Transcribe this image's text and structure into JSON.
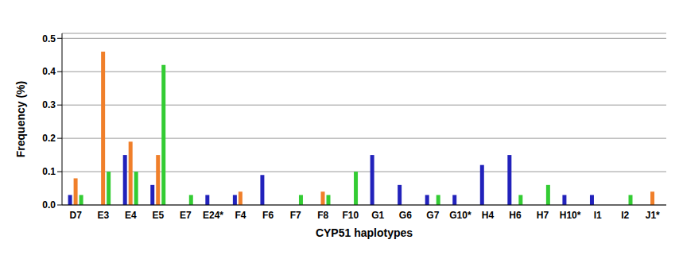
{
  "chart_data": {
    "type": "bar",
    "x_label": "CYP51 haplotypes",
    "y_label": "Frequency (%)",
    "categories": [
      "D7",
      "E3",
      "E4",
      "E5",
      "E7",
      "E24*",
      "F4",
      "F6",
      "F7",
      "F8",
      "F10",
      "G1",
      "G6",
      "G7",
      "G10*",
      "H4",
      "H6",
      "H7",
      "H10*",
      "I1",
      "I2",
      "J1*"
    ],
    "series": [
      {
        "color": "#2222bb",
        "values": [
          0.03,
          0,
          0.15,
          0.06,
          0,
          0.03,
          0.03,
          0.09,
          0,
          0,
          0,
          0.15,
          0.06,
          0.03,
          0.03,
          0.12,
          0.15,
          0,
          0.03,
          0.03,
          0,
          0
        ]
      },
      {
        "color": "#f07f2a",
        "values": [
          0.08,
          0.46,
          0.19,
          0.15,
          0,
          0,
          0.04,
          0,
          0,
          0.04,
          0,
          0,
          0,
          0,
          0,
          0,
          0,
          0,
          0,
          0,
          0,
          0.04
        ]
      },
      {
        "color": "#33cc33",
        "values": [
          0.03,
          0.1,
          0.1,
          0.42,
          0.03,
          0,
          0,
          0,
          0.03,
          0.03,
          0.1,
          0,
          0,
          0.03,
          0,
          0,
          0.03,
          0.06,
          0,
          0,
          0.03,
          0
        ]
      }
    ],
    "ylim": [
      0,
      0.515
    ],
    "yticks": [
      {
        "value": 0,
        "label": "0.0"
      },
      0.1,
      0.2,
      0.3,
      0.4,
      0.5
    ],
    "grid": true
  }
}
